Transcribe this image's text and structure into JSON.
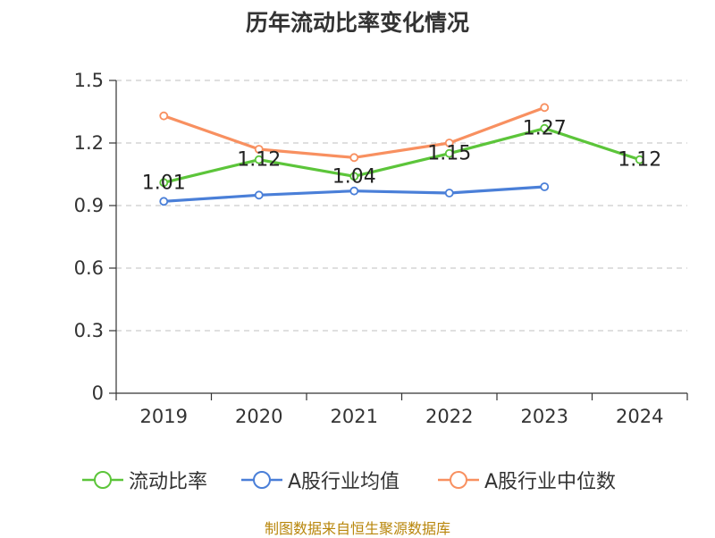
{
  "chart_data": {
    "type": "line",
    "title": "历年流动比率变化情况",
    "categories": [
      "2019",
      "2020",
      "2021",
      "2022",
      "2023",
      "2024"
    ],
    "ylim": [
      0,
      1.5
    ],
    "yticks": [
      "0",
      "0.3",
      "0.6",
      "0.9",
      "1.2",
      "1.5"
    ],
    "grid": true,
    "legend_position": "bottom",
    "series": [
      {
        "name": "流动比率",
        "color": "#5cc53a",
        "values": [
          1.01,
          1.12,
          1.04,
          1.15,
          1.27,
          1.12
        ],
        "labels": [
          "1.01",
          "1.12",
          "1.04",
          "1.15",
          "1.27",
          "1.12"
        ]
      },
      {
        "name": "A股行业均值",
        "color": "#4a7fd8",
        "values": [
          0.92,
          0.95,
          0.97,
          0.96,
          0.99,
          null
        ]
      },
      {
        "name": "A股行业中位数",
        "color": "#f89060",
        "values": [
          1.33,
          1.17,
          1.13,
          1.2,
          1.37,
          null
        ]
      }
    ]
  },
  "source_text": "制图数据来自恒生聚源数据库"
}
